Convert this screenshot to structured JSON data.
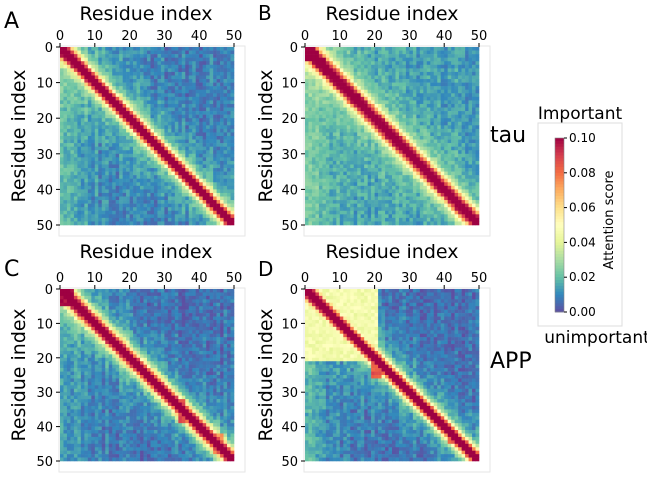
{
  "chart_data": [
    {
      "panel": "A",
      "type": "heatmap",
      "title": "",
      "xlabel": "Residue index",
      "ylabel": "Residue  index",
      "x_ticks": [
        "0",
        "10",
        "20",
        "30",
        "40",
        "50"
      ],
      "y_ticks": [
        "0",
        "10",
        "20",
        "30",
        "40",
        "50"
      ],
      "size": 50,
      "xlim": [
        0,
        50
      ],
      "ylim": [
        50,
        0
      ],
      "pattern": {
        "diagonal_peak": 0.09,
        "band_width": 2.0,
        "background": 0.008,
        "left_bias": 0.012,
        "blocks": []
      }
    },
    {
      "panel": "B",
      "type": "heatmap",
      "title": "",
      "xlabel": "Residue index",
      "ylabel": "Residue  index",
      "x_ticks": [
        "0",
        "10",
        "20",
        "30",
        "40",
        "50"
      ],
      "y_ticks": [
        "0",
        "10",
        "20",
        "30",
        "40",
        "50"
      ],
      "size": 50,
      "xlim": [
        0,
        50
      ],
      "ylim": [
        50,
        0
      ],
      "pattern": {
        "diagonal_peak": 0.085,
        "band_width": 2.4,
        "background": 0.014,
        "left_bias": 0.01,
        "blocks": [
          {
            "r0": 0,
            "r1": 3,
            "c0": 0,
            "c1": 2,
            "v": 0.1
          }
        ]
      }
    },
    {
      "panel": "C",
      "type": "heatmap",
      "title": "",
      "xlabel": "Residue index",
      "ylabel": "Residue  index",
      "x_ticks": [
        "0",
        "10",
        "20",
        "30",
        "40",
        "50"
      ],
      "y_ticks": [
        "0",
        "10",
        "20",
        "30",
        "40",
        "50"
      ],
      "size": 50,
      "xlim": [
        0,
        50
      ],
      "ylim": [
        50,
        0
      ],
      "pattern": {
        "diagonal_peak": 0.09,
        "band_width": 2.2,
        "background": 0.006,
        "left_bias": 0.01,
        "blocks": [
          {
            "r0": 0,
            "r1": 4,
            "c0": 0,
            "c1": 3,
            "v": 0.1
          },
          {
            "r0": 32,
            "r1": 38,
            "c0": 34,
            "c1": 35,
            "v": 0.085
          },
          {
            "r0": 42,
            "r1": 47,
            "c0": 44,
            "c1": 46,
            "v": 0.075
          }
        ]
      }
    },
    {
      "panel": "D",
      "type": "heatmap",
      "title": "",
      "xlabel": "Residue index",
      "ylabel": "Residue  index",
      "x_ticks": [
        "0",
        "10",
        "20",
        "30",
        "40",
        "50"
      ],
      "y_ticks": [
        "0",
        "10",
        "20",
        "30",
        "40",
        "50"
      ],
      "size": 50,
      "xlim": [
        0,
        50
      ],
      "ylim": [
        50,
        0
      ],
      "pattern": {
        "diagonal_peak": 0.09,
        "band_width": 2.0,
        "background": 0.006,
        "left_bias": 0.012,
        "blocks": [
          {
            "r0": 0,
            "r1": 20,
            "c0": 0,
            "c1": 20,
            "v": 0.045
          },
          {
            "r0": 20,
            "r1": 25,
            "c0": 19,
            "c1": 21,
            "v": 0.085
          },
          {
            "r0": 40,
            "r1": 44,
            "c0": 41,
            "c1": 42,
            "v": 0.08
          }
        ]
      }
    }
  ],
  "row_labels": {
    "top": "tau",
    "bottom": "APP"
  },
  "colorbar": {
    "label": "Attention score",
    "top_text": "Important",
    "bottom_text": "unimportant",
    "range": [
      0.0,
      0.1
    ],
    "ticks": [
      "0.00",
      "0.02",
      "0.04",
      "0.06",
      "0.08",
      "0.10"
    ],
    "colormap": "Spectral_r"
  }
}
